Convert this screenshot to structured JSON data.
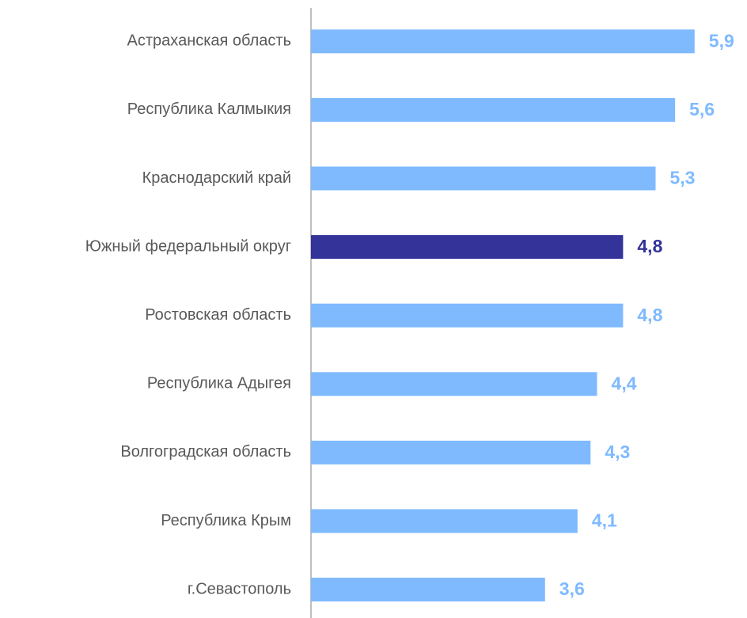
{
  "chart_data": {
    "type": "barh",
    "categories": [
      "Астраханская область",
      "Республика Калмыкия",
      "Краснодарский край",
      "Южный федеральный округ",
      "Ростовская область",
      "Республика Адыгея",
      "Волгоградская область",
      "Республика Крым",
      "г.Севастополь"
    ],
    "values": [
      5.9,
      5.6,
      5.3,
      4.8,
      4.8,
      4.4,
      4.3,
      4.1,
      3.6
    ],
    "value_labels": [
      "5,9",
      "5,6",
      "5,3",
      "4,8",
      "4,8",
      "4,4",
      "4,3",
      "4,1",
      "3,6"
    ],
    "colors": [
      "#7fbaff",
      "#7fbaff",
      "#7fbaff",
      "#333399",
      "#7fbaff",
      "#7fbaff",
      "#7fbaff",
      "#7fbaff",
      "#7fbaff"
    ],
    "xlim": [
      0,
      6
    ]
  }
}
